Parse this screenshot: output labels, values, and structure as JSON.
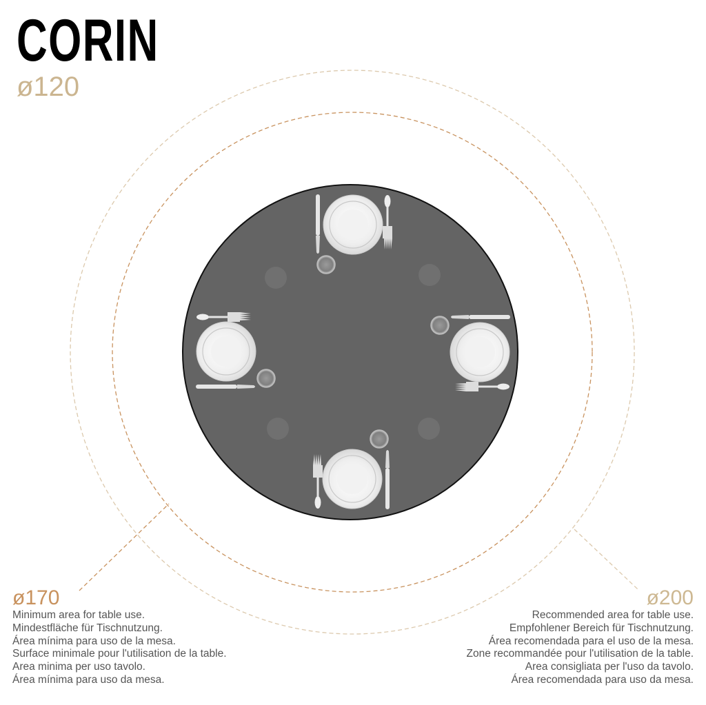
{
  "title": "CORIN",
  "table_diameter": "ø120",
  "minimum": {
    "diameter": "ø170",
    "lines": [
      "Minimum area for table use.",
      "Mindestfläche für Tischnutzung.",
      "Área mínima para uso de la mesa.",
      "Surface minimale pour l'utilisation de la table.",
      "Area minima per uso tavolo.",
      "Área mínima para uso da mesa."
    ]
  },
  "recommended": {
    "diameter": "ø200",
    "lines": [
      "Recommended area for table use.",
      "Empfohlener Bereich für Tischnutzung.",
      "Área recomendada para el uso de la mesa.",
      "Zone recommandée pour l'utilisation de la table.",
      "Area consigliata per l'uso da tavolo.",
      "Área recomendada para uso da mesa."
    ]
  },
  "colors": {
    "minimum_circle": "#c8925e",
    "recommended_circle": "#dcc9ad",
    "table": "#646464",
    "title": "#000000",
    "table_diameter": "#cbb590",
    "minimum_label": "#c8925e",
    "recommended_label": "#cdb892"
  },
  "place_settings": 4
}
